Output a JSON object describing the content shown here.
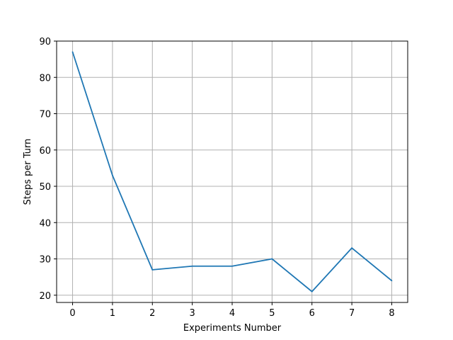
{
  "chart_data": {
    "type": "line",
    "title": "",
    "xlabel": "Experiments Number",
    "ylabel": "Steps per Turn",
    "x": [
      0,
      1,
      2,
      3,
      4,
      5,
      6,
      7,
      8
    ],
    "series": [
      {
        "values": [
          87,
          53,
          27,
          28,
          28,
          30,
          21,
          33,
          24
        ],
        "color": "#1f77b4"
      }
    ],
    "xlim": [
      -0.4,
      8.4
    ],
    "ylim": [
      18,
      90
    ],
    "xticks": [
      0,
      1,
      2,
      3,
      4,
      5,
      6,
      7,
      8
    ],
    "yticks": [
      20,
      30,
      40,
      50,
      60,
      70,
      80,
      90
    ],
    "grid": true,
    "grid_color": "#b0b0b0",
    "legend": false
  }
}
